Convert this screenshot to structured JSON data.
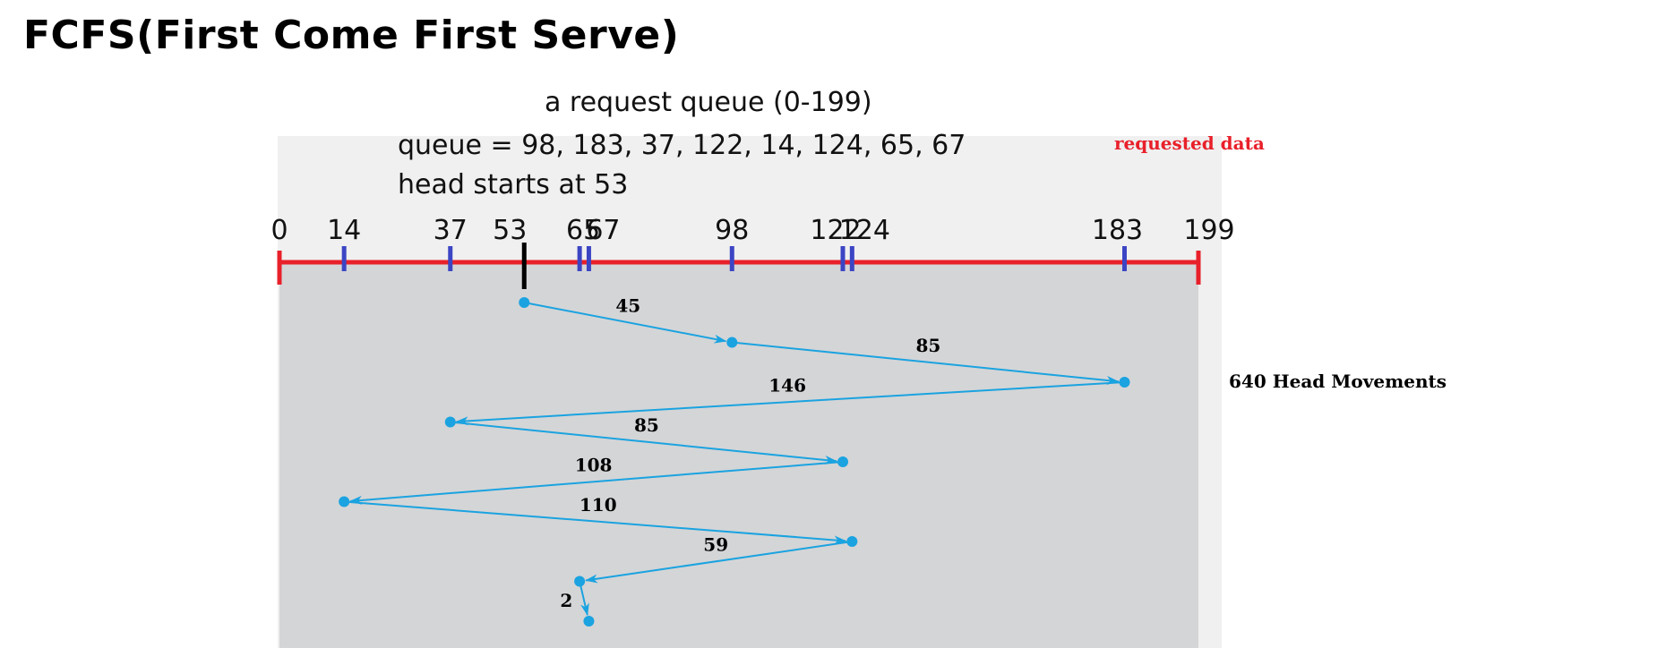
{
  "title": "FCFS(First Come First Serve)",
  "request_heading": "a request queue (0-199)",
  "queue_text": "queue = 98, 183, 37, 122, 14, 124, 65, 67",
  "head_text": "head starts at 53",
  "requested_label": "requested data",
  "total_label": "640 Head Movements",
  "axis": {
    "min": 0,
    "max": 199
  },
  "start_head": 53,
  "queue": [
    98,
    183,
    37,
    122,
    14,
    124,
    65,
    67
  ],
  "tick_labels": [
    "0",
    "14",
    "37",
    "53",
    "65",
    "67",
    "98",
    "122",
    "124",
    "183",
    "199"
  ],
  "movements": [
    "45",
    "85",
    "146",
    "85",
    "108",
    "110",
    "59",
    "2"
  ],
  "colors": {
    "axis": "#e8202a",
    "request_tick": "#3b45c4",
    "head_tick": "#000000",
    "path": "#1aa3e0",
    "plot_bg": "#d4d5d7"
  }
}
